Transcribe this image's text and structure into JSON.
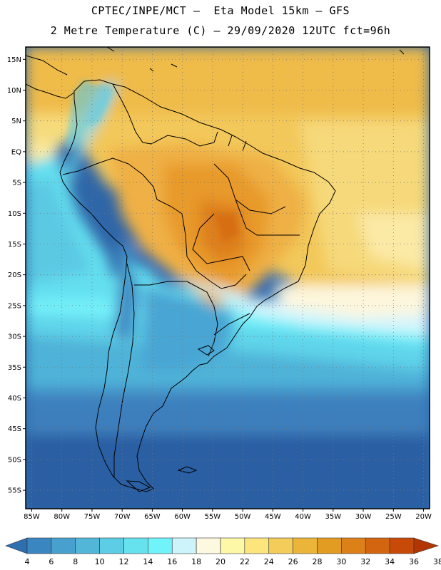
{
  "title": {
    "line1": "CPTEC/INPE/MCT –  Eta Model 15km – GFS",
    "line2": "2 Metre Temperature (C) – 29/09/2020 12UTC fct=96h"
  },
  "map": {
    "lat_labels": [
      "15N",
      "10N",
      "5N",
      "EQ",
      "5S",
      "10S",
      "15S",
      "20S",
      "25S",
      "30S",
      "35S",
      "40S",
      "45S",
      "50S",
      "55S"
    ],
    "lon_labels": [
      "85W",
      "80W",
      "75W",
      "70W",
      "65W",
      "60W",
      "55W",
      "50W",
      "45W",
      "40W",
      "35W",
      "30W",
      "25W",
      "20W"
    ],
    "lat_values": [
      15,
      10,
      5,
      0,
      -5,
      -10,
      -15,
      -20,
      -25,
      -30,
      -35,
      -40,
      -45,
      -50,
      -55
    ],
    "lon_values": [
      -85,
      -80,
      -75,
      -70,
      -65,
      -60,
      -55,
      -50,
      -45,
      -40,
      -35,
      -30,
      -25,
      -20
    ],
    "extent": {
      "lon_min": -86,
      "lon_max": -19,
      "lat_min": -58,
      "lat_max": 17
    },
    "grid": true
  },
  "colorbar": {
    "labels": [
      "4",
      "6",
      "8",
      "10",
      "12",
      "14",
      "16",
      "18",
      "20",
      "22",
      "24",
      "26",
      "28",
      "30",
      "32",
      "34",
      "36",
      "38"
    ],
    "colors": [
      "#2e6fb0",
      "#3a86c0",
      "#48a0cf",
      "#52b6d9",
      "#5ccde4",
      "#66e2ef",
      "#70f4fa",
      "#cdf4fb",
      "#fdf8e0",
      "#fdf7a8",
      "#fbe57c",
      "#f3cc5a",
      "#ebb53a",
      "#e39c22",
      "#dc8018",
      "#d46510",
      "#c84a08",
      "#b23604"
    ]
  }
}
